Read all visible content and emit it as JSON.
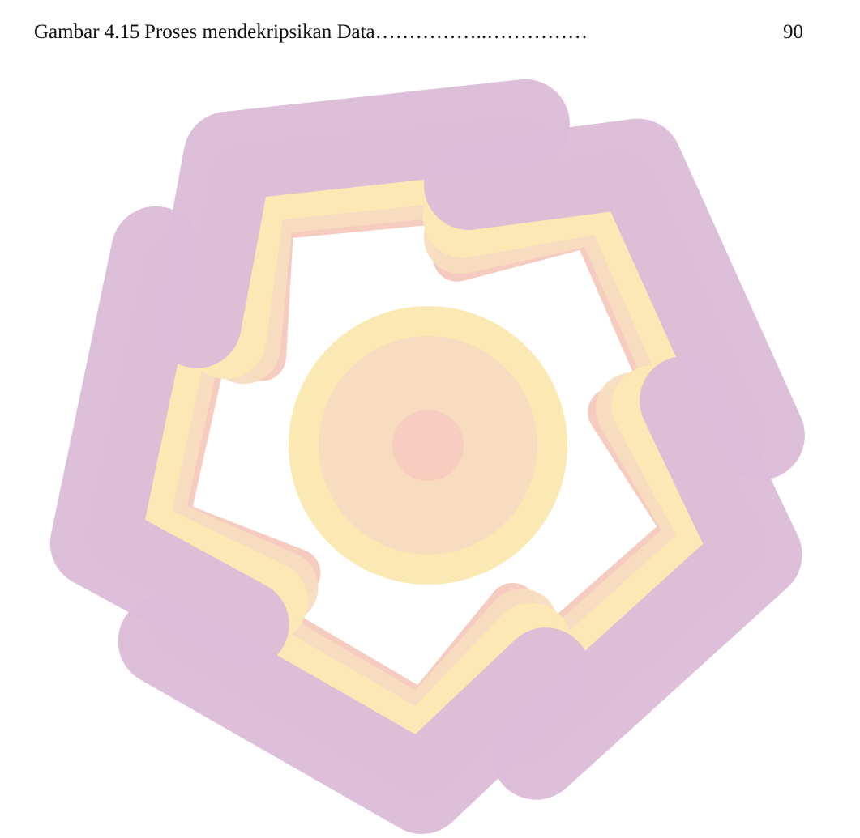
{
  "entry": {
    "label": "Gambar 4.15",
    "title": "Proses mendekripsikan Data",
    "leader": "……………..……………",
    "page": "90"
  }
}
